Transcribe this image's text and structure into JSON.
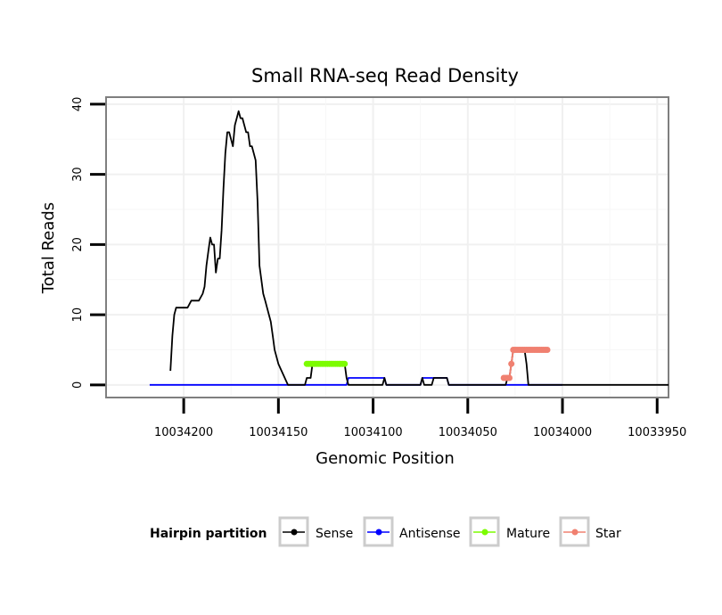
{
  "chart_data": {
    "type": "line",
    "title": "Small RNA-seq Read Density",
    "xlabel": "Genomic Position",
    "ylabel": "Total Reads",
    "xlim": [
      10034241,
      10033944
    ],
    "ylim": [
      -1.8,
      41
    ],
    "x_reversed": true,
    "x_ticks": [
      10034200,
      10034150,
      10034100,
      10034050,
      10034000,
      10033950
    ],
    "x_tick_labels": [
      "10034200",
      "10034150",
      "10034100",
      "10034050",
      "10034000",
      "10033950"
    ],
    "y_ticks": [
      0,
      10,
      20,
      30,
      40
    ],
    "y_tick_labels": [
      "0",
      "10",
      "20",
      "30",
      "40"
    ],
    "grid": true,
    "legend": {
      "title": "Hairpin partition",
      "position": "bottom",
      "entries": [
        "Sense",
        "Antisense",
        "Mature",
        "Star"
      ]
    },
    "series": [
      {
        "name": "Sense",
        "color": "#000000",
        "markers": false,
        "x": [
          10034207,
          10034206,
          10034205,
          10034204,
          10034202,
          10034200,
          10034198,
          10034196,
          10034194,
          10034192,
          10034190,
          10034189,
          10034188,
          10034187,
          10034186,
          10034185,
          10034184,
          10034183,
          10034182,
          10034181,
          10034180,
          10034179,
          10034178,
          10034177,
          10034176,
          10034175,
          10034174,
          10034173,
          10034172,
          10034171,
          10034170,
          10034169,
          10034168,
          10034167,
          10034166,
          10034165,
          10034164,
          10034163,
          10034162,
          10034161,
          10034160,
          10034159,
          10034158,
          10034157,
          10034156,
          10034155,
          10034154,
          10034153,
          10034152,
          10034150,
          10034145,
          10034140,
          10034136,
          10034135,
          10034134,
          10034133,
          10034132,
          10034115,
          10034114,
          10034113,
          10034095,
          10034094,
          10034093,
          10034075,
          10034074,
          10034073,
          10034069,
          10034068,
          10034061,
          10034060,
          10034059,
          10034058,
          10034057,
          10034056,
          10034055,
          10034053,
          10034050,
          10034045,
          10034040,
          10034030,
          10034029,
          10034028,
          10034027,
          10034026,
          10034023,
          10034022,
          10034021,
          10034020,
          10034019,
          10034018,
          10034000,
          10033980,
          10033960,
          10033950,
          10033944
        ],
        "y": [
          2,
          7,
          10,
          11,
          11,
          11,
          11,
          12,
          12,
          12,
          13,
          14,
          17,
          19,
          21,
          20,
          20,
          16,
          18,
          18,
          22,
          28,
          33,
          36,
          36,
          35,
          34,
          37,
          38,
          39,
          38,
          38,
          37,
          36,
          36,
          34,
          34,
          33,
          32,
          26,
          17,
          15,
          13,
          12,
          11,
          10,
          9,
          7,
          5,
          3,
          0,
          0,
          0,
          1,
          1,
          1,
          3,
          3,
          1,
          0,
          0,
          1,
          0,
          0,
          1,
          0,
          0,
          1,
          1,
          0,
          0,
          0,
          0,
          0,
          0,
          0,
          0,
          0,
          0,
          0,
          1,
          1,
          3,
          5,
          5,
          5,
          5,
          5,
          3,
          0,
          0,
          0,
          0,
          0,
          0
        ]
      },
      {
        "name": "Antisense",
        "color": "#0000ff",
        "markers": false,
        "x": [
          10034218,
          10034180,
          10034150,
          10034120,
          10034115,
          10034114,
          10034113,
          10034095,
          10034094,
          10034093,
          10034075,
          10034074,
          10034073,
          10034069,
          10034068,
          10034061,
          10034060,
          10034040,
          10034020,
          10034010,
          10034000
        ],
        "y": [
          0,
          0,
          0,
          0,
          0,
          0,
          1,
          1,
          1,
          0,
          0,
          1,
          1,
          1,
          1,
          1,
          0,
          0,
          0,
          0,
          0
        ]
      },
      {
        "name": "Mature",
        "color": "#7cfc00",
        "markers": true,
        "x": [
          10034135,
          10034134,
          10034133,
          10034132,
          10034131,
          10034130,
          10034129,
          10034128,
          10034127,
          10034126,
          10034125,
          10034124,
          10034123,
          10034122,
          10034121,
          10034120,
          10034119,
          10034118,
          10034117,
          10034116,
          10034115
        ],
        "y": [
          3,
          3,
          3,
          3,
          3,
          3,
          3,
          3,
          3,
          3,
          3,
          3,
          3,
          3,
          3,
          3,
          3,
          3,
          3,
          3,
          3
        ]
      },
      {
        "name": "Star",
        "color": "#f08070",
        "markers": true,
        "x": [
          10034031,
          10034030,
          10034029,
          10034028,
          10034027,
          10034026,
          10034025,
          10034024,
          10034023,
          10034022,
          10034021,
          10034020,
          10034019,
          10034018,
          10034017,
          10034016,
          10034015,
          10034014,
          10034013,
          10034012,
          10034011,
          10034010,
          10034009,
          10034008
        ],
        "y": [
          1,
          1,
          1,
          1,
          3,
          5,
          5,
          5,
          5,
          5,
          5,
          5,
          5,
          5,
          5,
          5,
          5,
          5,
          5,
          5,
          5,
          5,
          5,
          5
        ]
      }
    ]
  }
}
